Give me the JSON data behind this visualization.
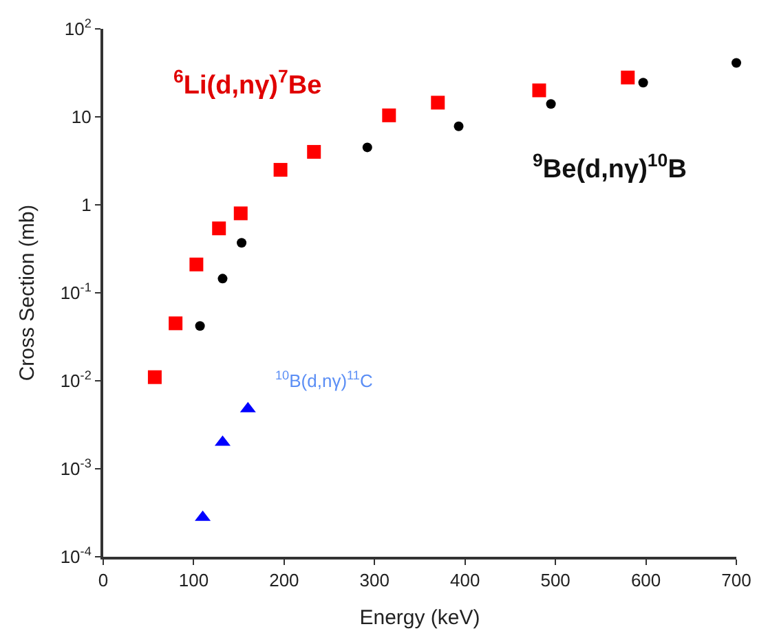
{
  "chart_data": {
    "type": "scatter",
    "xlabel": "Energy (keV)",
    "ylabel": "Cross Section (mb)",
    "log": "y",
    "xlim": [
      0,
      700
    ],
    "xticks": [
      0,
      100,
      200,
      300,
      400,
      500,
      600,
      700
    ],
    "ylim": [
      0.0001,
      100
    ],
    "yticks": [
      {
        "value": 0.0001,
        "label": "10$^{-4}$"
      },
      {
        "value": 0.001,
        "label": "10$^{-3}$"
      },
      {
        "value": 0.01,
        "label": "10$^{-2}$"
      },
      {
        "value": 0.1,
        "label": "10$^{-1}$"
      },
      1,
      10,
      {
        "value": 100,
        "label": "10$^{2}$"
      }
    ],
    "series": [
      {
        "name": "$^{6}$Li(d,nγ)$^{7}$Be",
        "color": "#ff0000",
        "marker": "square",
        "x": [
          57,
          80,
          103,
          128,
          152,
          196,
          233,
          316,
          370,
          482,
          580
        ],
        "values": [
          0.011,
          0.045,
          0.21,
          0.54,
          0.8,
          2.5,
          4.0,
          10.4,
          14.5,
          20,
          28
        ]
      },
      {
        "name": "$^{9}$Be(d,nγ)$^{10}$B",
        "color": "#000000",
        "marker": "circle",
        "x": [
          107,
          132,
          153,
          292,
          393,
          495,
          597,
          700
        ],
        "values": [
          0.042,
          0.145,
          0.37,
          4.5,
          7.8,
          14,
          24.5,
          41
        ]
      },
      {
        "name": "$^{10}$B(d,nγ)$^{11}$C",
        "color": "#0000ff",
        "marker": "triangle",
        "x": [
          110,
          132,
          160
        ],
        "values": [
          0.00028,
          0.002,
          0.0048
        ]
      }
    ]
  }
}
